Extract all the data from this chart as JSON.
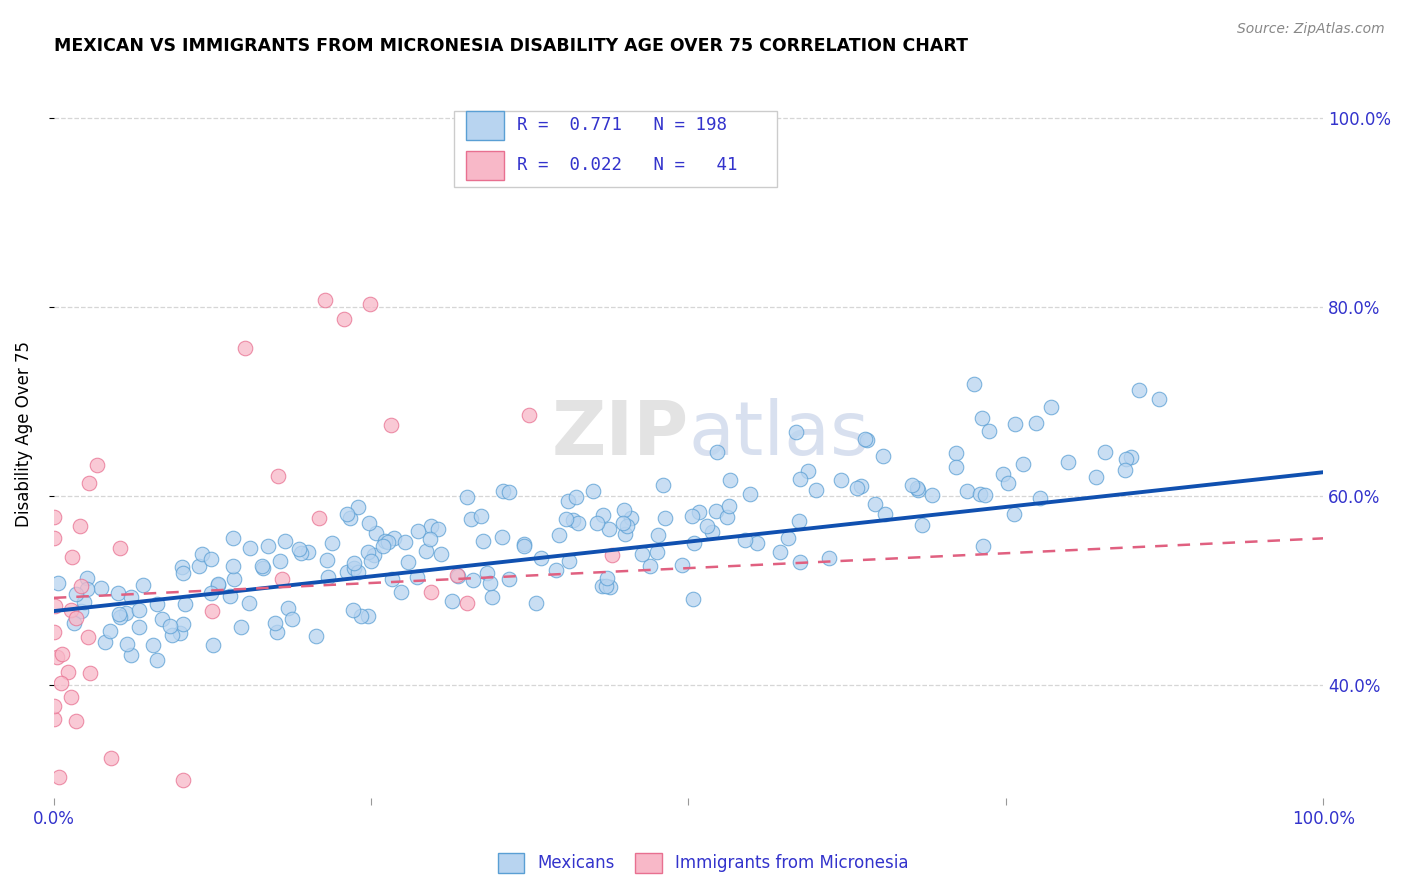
{
  "title": "MEXICAN VS IMMIGRANTS FROM MICRONESIA DISABILITY AGE OVER 75 CORRELATION CHART",
  "source": "Source: ZipAtlas.com",
  "ylabel": "Disability Age Over 75",
  "watermark": "ZIPatlas",
  "blue_scatter_face": "#b8d4f0",
  "blue_scatter_edge": "#5a9fd4",
  "pink_scatter_face": "#f8b8c8",
  "pink_scatter_edge": "#e87090",
  "blue_line_color": "#1050b0",
  "pink_line_color": "#e06080",
  "axis_color": "#3333cc",
  "background": "#ffffff",
  "grid_color": "#cccccc",
  "xlim": [
    0.0,
    1.0
  ],
  "ylim": [
    0.28,
    1.05
  ],
  "yticks": [
    0.4,
    0.6,
    0.8,
    1.0
  ],
  "ytick_labels": [
    "40.0%",
    "60.0%",
    "80.0%",
    "100.0%"
  ]
}
